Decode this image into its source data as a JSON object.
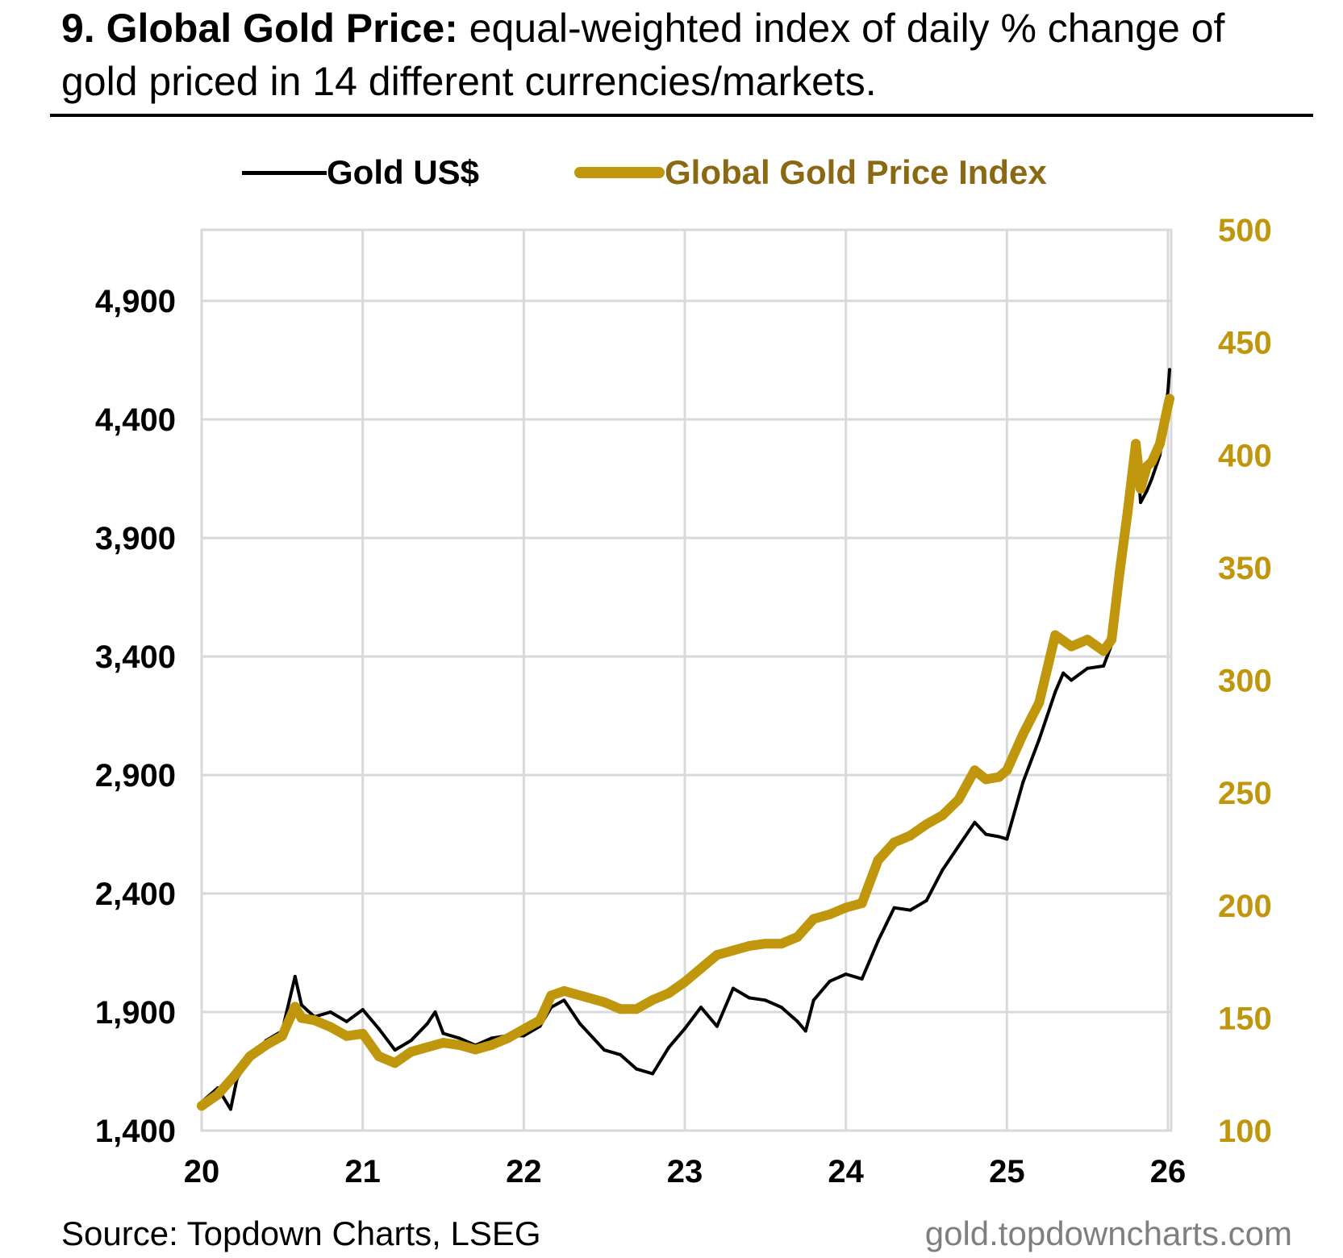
{
  "title": {
    "bold": "9. Global Gold Price:",
    "rest": " equal-weighted index of daily % change of gold priced in 14 different currencies/markets."
  },
  "legend": {
    "gold_usd": "Gold US$",
    "index": "Global Gold Price Index"
  },
  "footer": {
    "source": "Source: Topdown Charts, LSEG",
    "site": "gold.topdowncharts.com"
  },
  "colors": {
    "gold": "#C0960C",
    "gold_text": "#8B6914",
    "black": "#000000",
    "grid": "#d9d9d9",
    "footer_gray": "#7f7f7f"
  },
  "chart_data": {
    "type": "line",
    "title": "Global Gold Price",
    "x_tick_labels": [
      "20",
      "21",
      "22",
      "23",
      "24",
      "25",
      "26"
    ],
    "x_ticks": [
      2020,
      2021,
      2022,
      2023,
      2024,
      2025,
      2026
    ],
    "xlim": [
      2020,
      2026.02
    ],
    "y_left": {
      "label": "Gold US$",
      "ylim": [
        1400,
        5200
      ],
      "ticks": [
        1400,
        1900,
        2400,
        2900,
        3400,
        3900,
        4400,
        4900
      ],
      "tick_labels": [
        "1,400",
        "1,900",
        "2,400",
        "2,900",
        "3,400",
        "3,900",
        "4,400",
        "4,900"
      ]
    },
    "y_right": {
      "label": "Global Gold Price Index",
      "ylim": [
        100,
        500
      ],
      "ticks": [
        100,
        150,
        200,
        250,
        300,
        350,
        400,
        450,
        500
      ],
      "tick_labels": [
        "100",
        "150",
        "200",
        "250",
        "300",
        "350",
        "400",
        "450",
        "500"
      ]
    },
    "series": [
      {
        "name": "Gold US$",
        "axis": "left",
        "x": [
          2020.0,
          2020.1,
          2020.18,
          2020.22,
          2020.3,
          2020.4,
          2020.5,
          2020.58,
          2020.62,
          2020.7,
          2020.8,
          2020.9,
          2021.0,
          2021.1,
          2021.2,
          2021.3,
          2021.4,
          2021.45,
          2021.5,
          2021.6,
          2021.7,
          2021.8,
          2021.9,
          2022.0,
          2022.1,
          2022.17,
          2022.25,
          2022.35,
          2022.5,
          2022.6,
          2022.7,
          2022.8,
          2022.9,
          2023.0,
          2023.1,
          2023.2,
          2023.3,
          2023.4,
          2023.5,
          2023.6,
          2023.7,
          2023.75,
          2023.8,
          2023.9,
          2024.0,
          2024.1,
          2024.2,
          2024.3,
          2024.4,
          2024.5,
          2024.6,
          2024.7,
          2024.8,
          2024.87,
          2024.95,
          2025.0,
          2025.1,
          2025.2,
          2025.25,
          2025.3,
          2025.35,
          2025.4,
          2025.5,
          2025.6,
          2025.65,
          2025.7,
          2025.75,
          2025.8,
          2025.83,
          2025.87,
          2025.9,
          2025.95,
          2026.0,
          2026.01
        ],
        "values": [
          1520,
          1580,
          1490,
          1620,
          1700,
          1780,
          1820,
          2050,
          1930,
          1880,
          1900,
          1860,
          1910,
          1830,
          1740,
          1780,
          1850,
          1900,
          1810,
          1790,
          1760,
          1790,
          1800,
          1800,
          1840,
          1920,
          1950,
          1850,
          1740,
          1720,
          1660,
          1640,
          1750,
          1830,
          1920,
          1840,
          2000,
          1960,
          1950,
          1920,
          1860,
          1820,
          1950,
          2030,
          2060,
          2040,
          2200,
          2340,
          2330,
          2370,
          2500,
          2600,
          2700,
          2650,
          2640,
          2630,
          2870,
          3050,
          3150,
          3250,
          3330,
          3300,
          3350,
          3360,
          3450,
          3650,
          3950,
          4300,
          4050,
          4100,
          4150,
          4250,
          4520,
          4610
        ]
      },
      {
        "name": "Global Gold Price Index",
        "axis": "right",
        "x": [
          2020.0,
          2020.1,
          2020.2,
          2020.3,
          2020.4,
          2020.5,
          2020.58,
          2020.62,
          2020.7,
          2020.8,
          2020.9,
          2021.0,
          2021.1,
          2021.2,
          2021.3,
          2021.4,
          2021.5,
          2021.6,
          2021.7,
          2021.8,
          2021.9,
          2022.0,
          2022.1,
          2022.17,
          2022.25,
          2022.4,
          2022.5,
          2022.6,
          2022.7,
          2022.8,
          2022.9,
          2023.0,
          2023.1,
          2023.2,
          2023.3,
          2023.4,
          2023.5,
          2023.6,
          2023.7,
          2023.8,
          2023.9,
          2024.0,
          2024.1,
          2024.2,
          2024.3,
          2024.4,
          2024.5,
          2024.6,
          2024.7,
          2024.8,
          2024.87,
          2024.95,
          2025.0,
          2025.1,
          2025.2,
          2025.25,
          2025.3,
          2025.4,
          2025.5,
          2025.6,
          2025.65,
          2025.7,
          2025.75,
          2025.8,
          2025.83,
          2025.87,
          2025.9,
          2025.95,
          2026.0,
          2026.01
        ],
        "values": [
          111,
          116,
          124,
          133,
          138,
          142,
          155,
          150,
          149,
          146,
          142,
          143,
          133,
          130,
          135,
          137,
          139,
          138,
          136,
          138,
          141,
          145,
          149,
          160,
          162,
          159,
          157,
          154,
          154,
          158,
          161,
          166,
          172,
          178,
          180,
          182,
          183,
          183,
          186,
          194,
          196,
          199,
          201,
          220,
          228,
          231,
          236,
          240,
          247,
          260,
          256,
          257,
          260,
          276,
          290,
          305,
          320,
          315,
          318,
          313,
          318,
          348,
          375,
          405,
          385,
          395,
          397,
          405,
          422,
          425
        ]
      }
    ]
  }
}
